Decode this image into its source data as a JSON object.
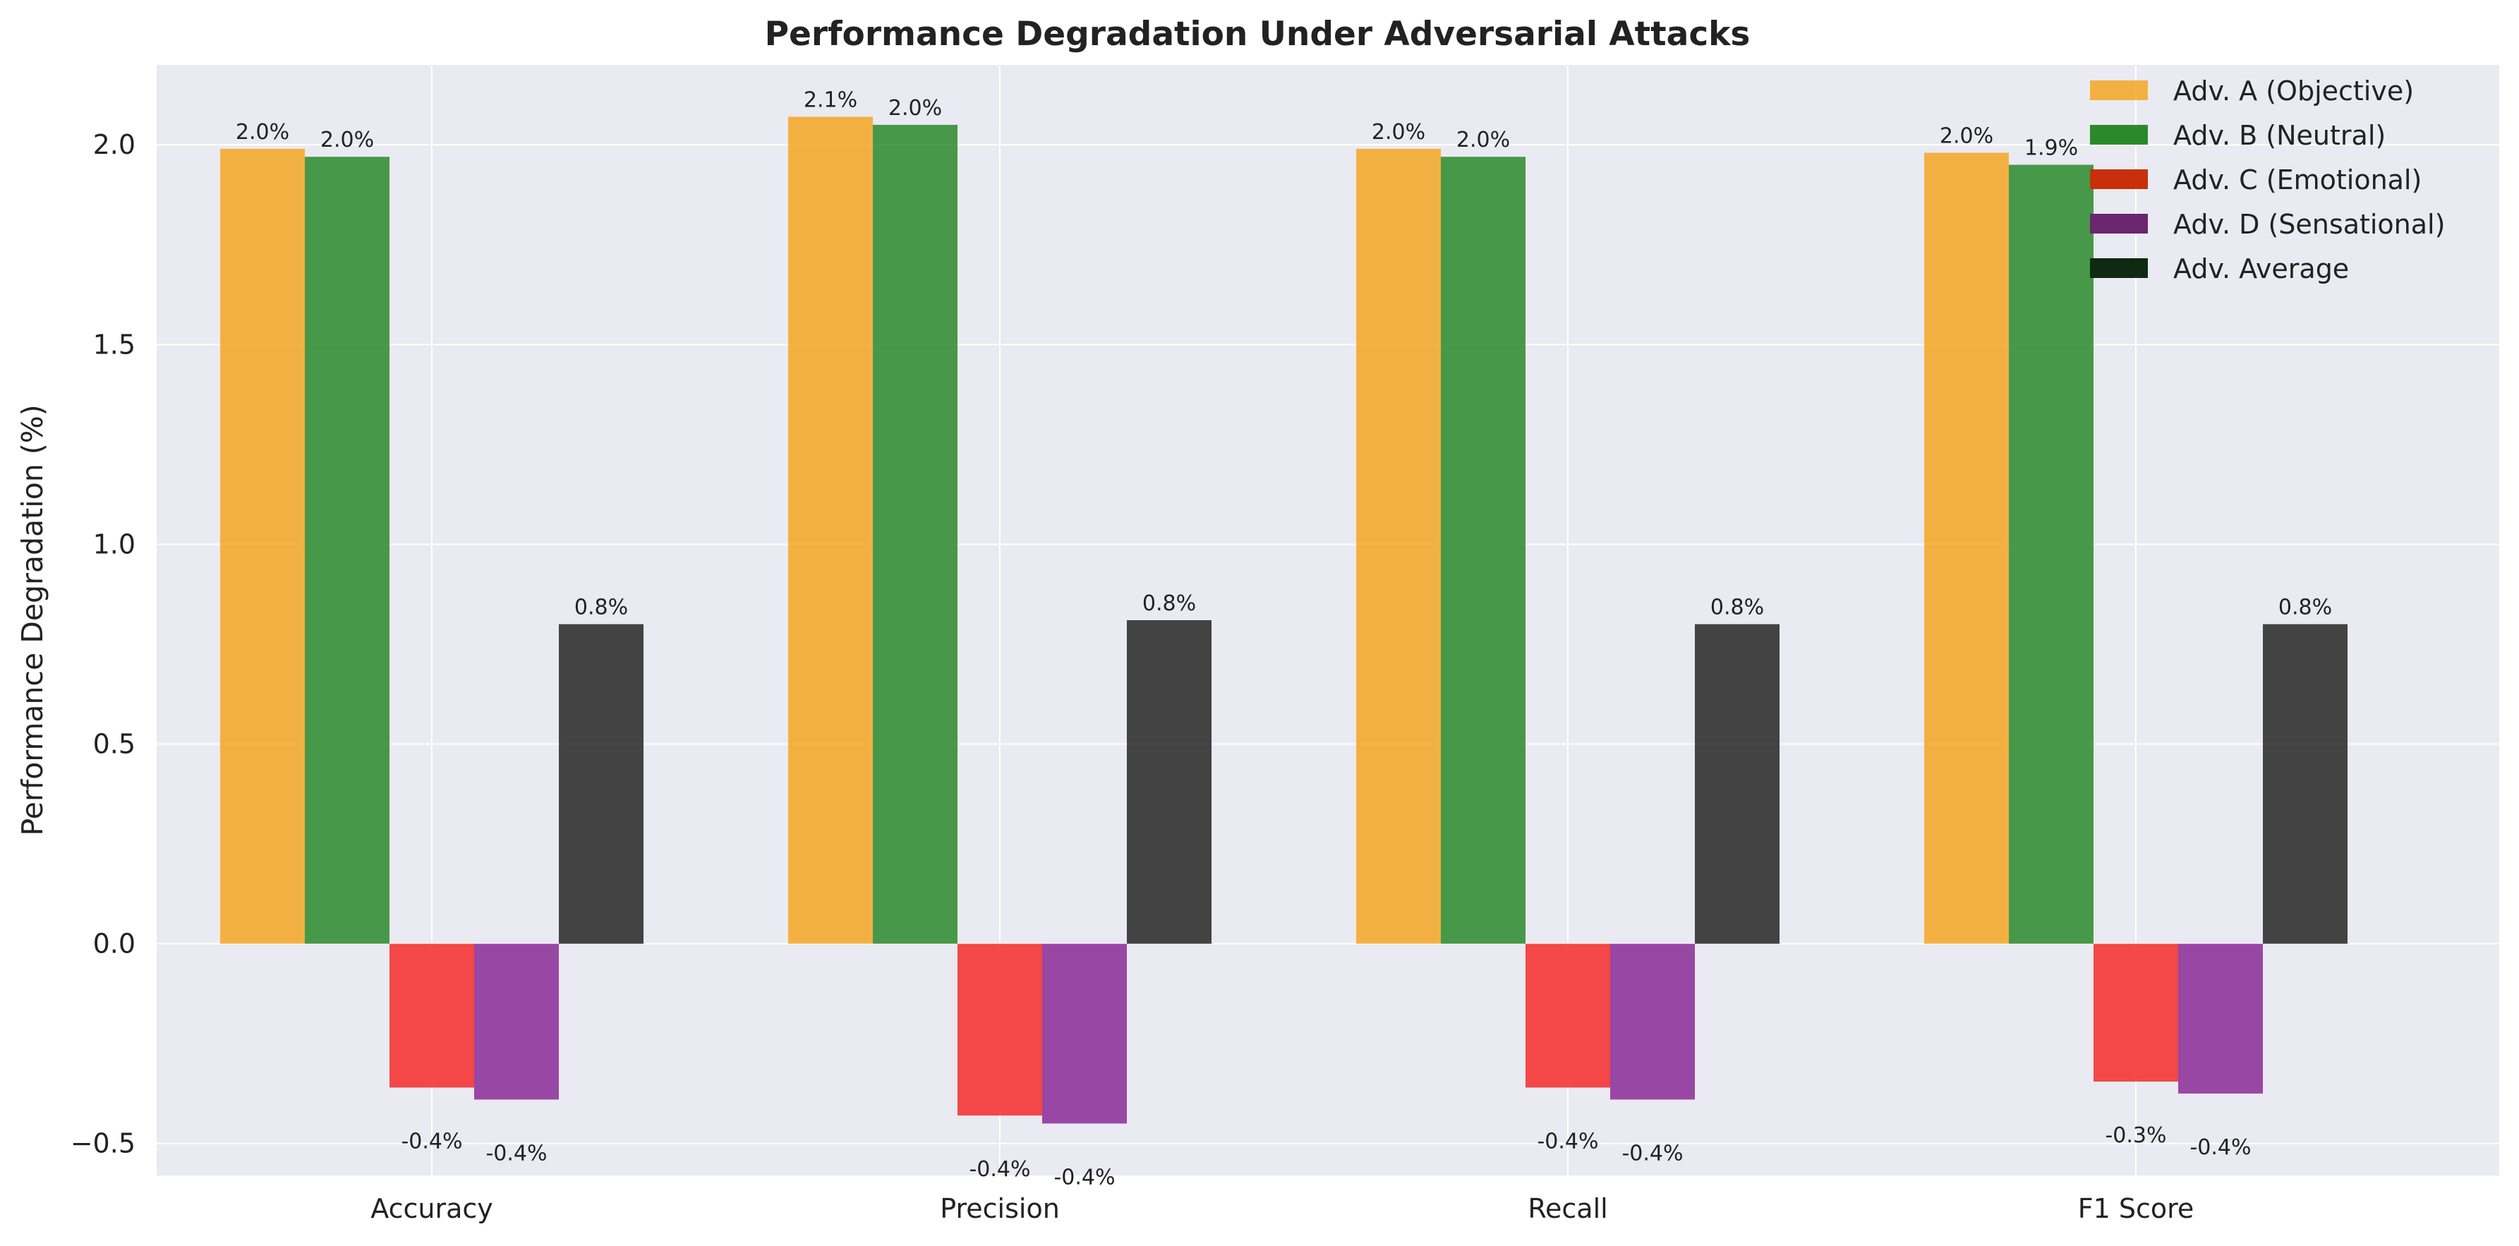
{
  "chart_data": {
    "type": "bar",
    "title": "Performance Degradation Under Adversarial Attacks",
    "xlabel": "",
    "ylabel": "Performance Degradation (%)",
    "categories": [
      "Accuracy",
      "Precision",
      "Recall",
      "F1 Score"
    ],
    "ylim": [
      -0.58,
      2.2
    ],
    "yticks": [
      -0.5,
      0.0,
      0.5,
      1.0,
      1.5,
      2.0
    ],
    "ytick_labels": [
      "−0.5",
      "0.0",
      "0.5",
      "1.0",
      "1.5",
      "2.0"
    ],
    "grid": true,
    "legend_position": "top-right",
    "series": [
      {
        "name": "Adv. A (Objective)",
        "color": "#f5a623",
        "values": [
          1.99,
          2.07,
          1.99,
          1.98
        ],
        "labels": [
          "2.0%",
          "2.1%",
          "2.0%",
          "2.0%"
        ]
      },
      {
        "name": "Adv. B (Neutral)",
        "color": "#2a8a2a",
        "values": [
          1.97,
          2.05,
          1.97,
          1.95
        ],
        "labels": [
          "2.0%",
          "2.0%",
          "2.0%",
          "1.9%"
        ]
      },
      {
        "name": "Adv. C (Emotional)",
        "color": "#f52a2a",
        "values": [
          -0.36,
          -0.43,
          -0.36,
          -0.345
        ],
        "labels": [
          "-0.4%",
          "-0.4%",
          "-0.4%",
          "-0.3%"
        ]
      },
      {
        "name": "Adv. D (Sensational)",
        "color": "#8b2a96",
        "values": [
          -0.39,
          -0.45,
          -0.39,
          -0.375
        ],
        "labels": [
          "-0.4%",
          "-0.4%",
          "-0.4%",
          "-0.4%"
        ]
      },
      {
        "name": "Adv. Average",
        "color": "#262626",
        "values": [
          0.8,
          0.81,
          0.8,
          0.8
        ],
        "labels": [
          "0.8%",
          "0.8%",
          "0.8%",
          "0.8%"
        ]
      }
    ],
    "legend_patch_colors": [
      "#f5a623",
      "#2a8a2a",
      "#c8300c",
      "#6b2670",
      "#0e2a12"
    ]
  }
}
